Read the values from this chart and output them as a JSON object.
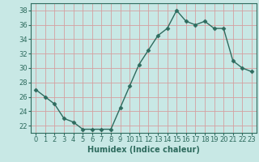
{
  "x": [
    0,
    1,
    2,
    3,
    4,
    5,
    6,
    7,
    8,
    9,
    10,
    11,
    12,
    13,
    14,
    15,
    16,
    17,
    18,
    19,
    20,
    21,
    22,
    23
  ],
  "y": [
    27,
    26,
    25,
    23,
    22.5,
    21.5,
    21.5,
    21.5,
    21.5,
    24.5,
    27.5,
    30.5,
    32.5,
    34.5,
    35.5,
    38,
    36.5,
    36,
    36.5,
    35.5,
    35.5,
    31,
    30,
    29.5
  ],
  "xlabel": "Humidex (Indice chaleur)",
  "ylabel": "",
  "xlim": [
    -0.5,
    23.5
  ],
  "ylim": [
    21,
    39
  ],
  "yticks": [
    22,
    24,
    26,
    28,
    30,
    32,
    34,
    36,
    38
  ],
  "xticks": [
    0,
    1,
    2,
    3,
    4,
    5,
    6,
    7,
    8,
    9,
    10,
    11,
    12,
    13,
    14,
    15,
    16,
    17,
    18,
    19,
    20,
    21,
    22,
    23
  ],
  "line_color": "#2e6b5e",
  "marker": "D",
  "marker_size": 2.5,
  "bg_color": "#c8e8e5",
  "grid_color": "#d4a0a0",
  "axis_color": "#2e6b5e",
  "label_fontsize": 7,
  "tick_fontsize": 6
}
